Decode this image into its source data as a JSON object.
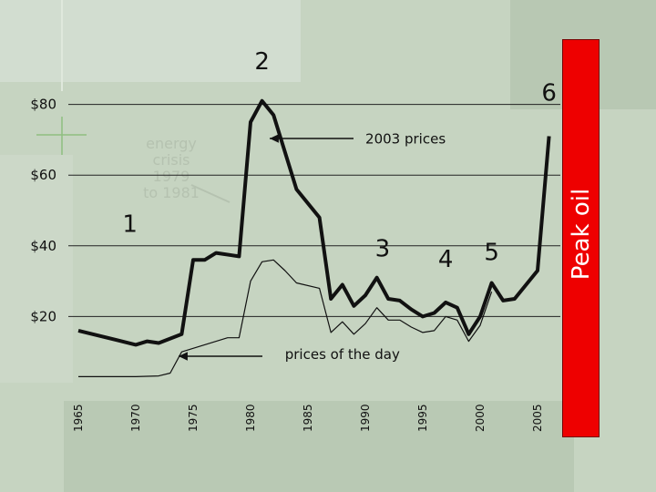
{
  "chart_data": {
    "type": "line",
    "x_ticks": [
      "1965",
      "1970",
      "1975",
      "1980",
      "1985",
      "1990",
      "1995",
      "2000",
      "2005"
    ],
    "y_ticks": [
      "$20",
      "$40",
      "$60",
      "$80"
    ],
    "ylim": [
      0,
      85
    ],
    "xlim": [
      1965,
      2007
    ],
    "grid": "horizontal",
    "series": [
      {
        "name": "2003 prices",
        "style": "thick",
        "color": "#111111",
        "points": [
          [
            1965,
            16
          ],
          [
            1970,
            12
          ],
          [
            1971,
            13
          ],
          [
            1972,
            12.5
          ],
          [
            1974,
            15
          ],
          [
            1975,
            36
          ],
          [
            1976,
            36
          ],
          [
            1977,
            38
          ],
          [
            1979,
            37
          ],
          [
            1980,
            75
          ],
          [
            1981,
            81
          ],
          [
            1982,
            77
          ],
          [
            1984,
            56
          ],
          [
            1986,
            48
          ],
          [
            1987,
            25
          ],
          [
            1988,
            29
          ],
          [
            1989,
            23
          ],
          [
            1990,
            26
          ],
          [
            1991,
            31
          ],
          [
            1992,
            25
          ],
          [
            1993,
            24.5
          ],
          [
            1994,
            22
          ],
          [
            1995,
            20
          ],
          [
            1996,
            21
          ],
          [
            1997,
            24
          ],
          [
            1998,
            22.5
          ],
          [
            1999,
            15
          ],
          [
            2000,
            20
          ],
          [
            2001,
            29.5
          ],
          [
            2002,
            24.5
          ],
          [
            2003,
            25
          ],
          [
            2005,
            33
          ],
          [
            2006,
            71
          ]
        ]
      },
      {
        "name": "prices of the day",
        "style": "thin",
        "color": "#111111",
        "points": [
          [
            1965,
            3
          ],
          [
            1970,
            3
          ],
          [
            1972,
            3.2
          ],
          [
            1973,
            4
          ],
          [
            1974,
            10
          ],
          [
            1975,
            11
          ],
          [
            1977,
            13
          ],
          [
            1978,
            14
          ],
          [
            1979,
            14
          ],
          [
            1980,
            30
          ],
          [
            1981,
            35.5
          ],
          [
            1982,
            36
          ],
          [
            1983,
            33
          ],
          [
            1984,
            29.5
          ],
          [
            1986,
            28
          ],
          [
            1987,
            15.5
          ],
          [
            1988,
            18.5
          ],
          [
            1989,
            15
          ],
          [
            1990,
            18
          ],
          [
            1991,
            22.5
          ],
          [
            1992,
            19
          ],
          [
            1993,
            19
          ],
          [
            1994,
            17
          ],
          [
            1995,
            15.5
          ],
          [
            1996,
            16
          ],
          [
            1997,
            20
          ],
          [
            1998,
            19
          ],
          [
            1999,
            13
          ],
          [
            2000,
            17.5
          ],
          [
            2001,
            27
          ]
        ]
      }
    ],
    "annotations": [
      {
        "text": "1",
        "x": 1969.5,
        "y": 44
      },
      {
        "text": "2",
        "x": 1981,
        "y": 90
      },
      {
        "text": "3",
        "x": 1991.5,
        "y": 37
      },
      {
        "text": "4",
        "x": 1997,
        "y": 34
      },
      {
        "text": "5",
        "x": 2001,
        "y": 36
      },
      {
        "text": "6",
        "x": 2006,
        "y": 81
      },
      {
        "text": "2003 prices",
        "x": 1993.5,
        "y": 69
      },
      {
        "text": "prices of the day",
        "x": 1988,
        "y": 8
      }
    ],
    "ghost_text": [
      "energy",
      "crisis",
      "1979",
      "to 1981"
    ],
    "side_label": "Peak oil",
    "side_label_color": "#ee0000"
  }
}
